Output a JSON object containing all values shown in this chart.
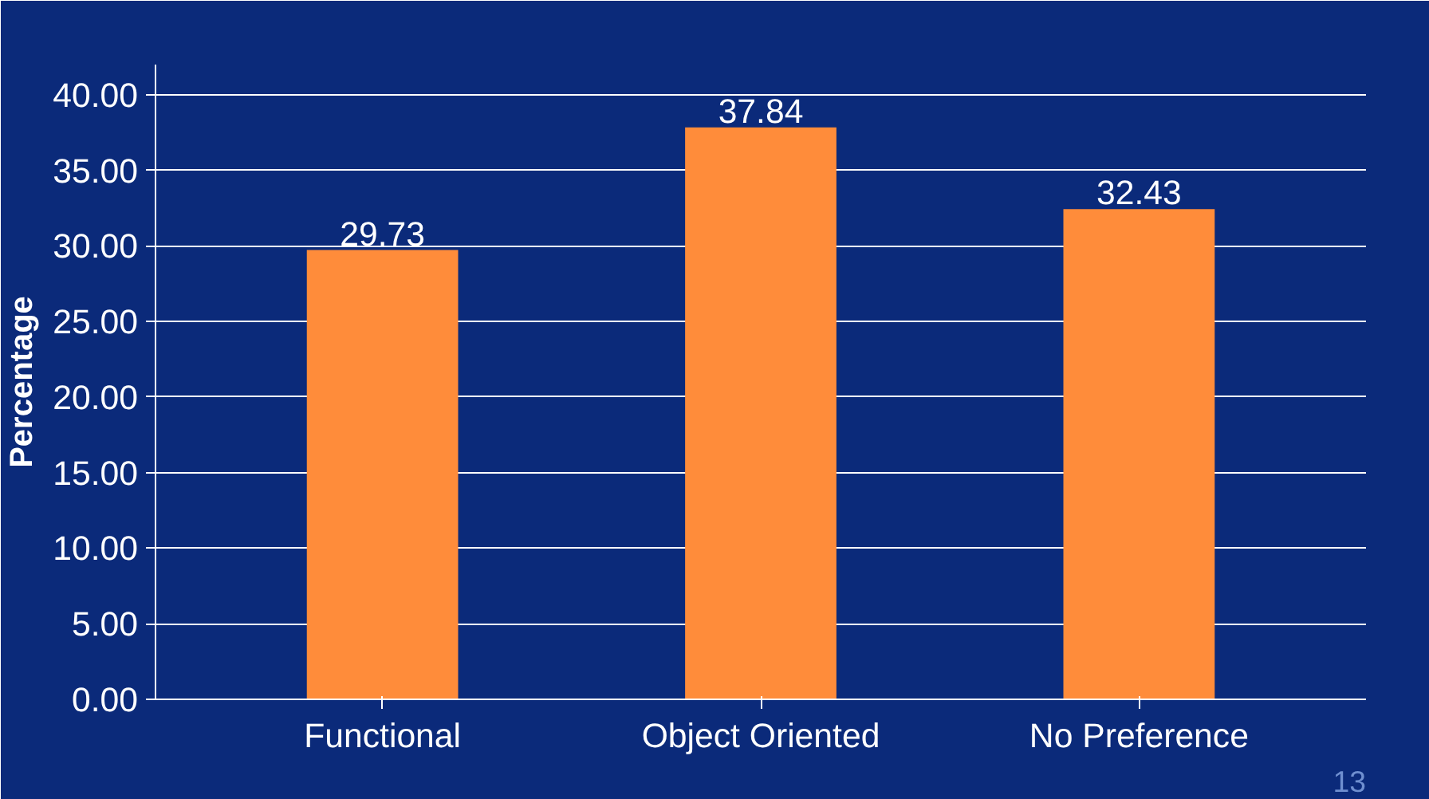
{
  "chart_data": {
    "type": "bar",
    "ylabel": "Percentage",
    "categories": [
      "Functional",
      "Object Oriented",
      "No Preference"
    ],
    "values": [
      29.73,
      37.84,
      32.43
    ],
    "color": "#ff8c3a",
    "ylim": [
      0,
      42
    ],
    "yticks": [
      {
        "value": 0,
        "label": "0.00"
      },
      {
        "value": 5,
        "label": "5.00"
      },
      {
        "value": 10,
        "label": "10.00"
      },
      {
        "value": 15,
        "label": "15.00"
      },
      {
        "value": 20,
        "label": "20.00"
      },
      {
        "value": 25,
        "label": "25.00"
      },
      {
        "value": 30,
        "label": "30.00"
      },
      {
        "value": 35,
        "label": "35.00"
      },
      {
        "value": 40,
        "label": "40.00"
      }
    ],
    "grid": "y",
    "data_labels": true,
    "annotations": [
      "13"
    ]
  }
}
